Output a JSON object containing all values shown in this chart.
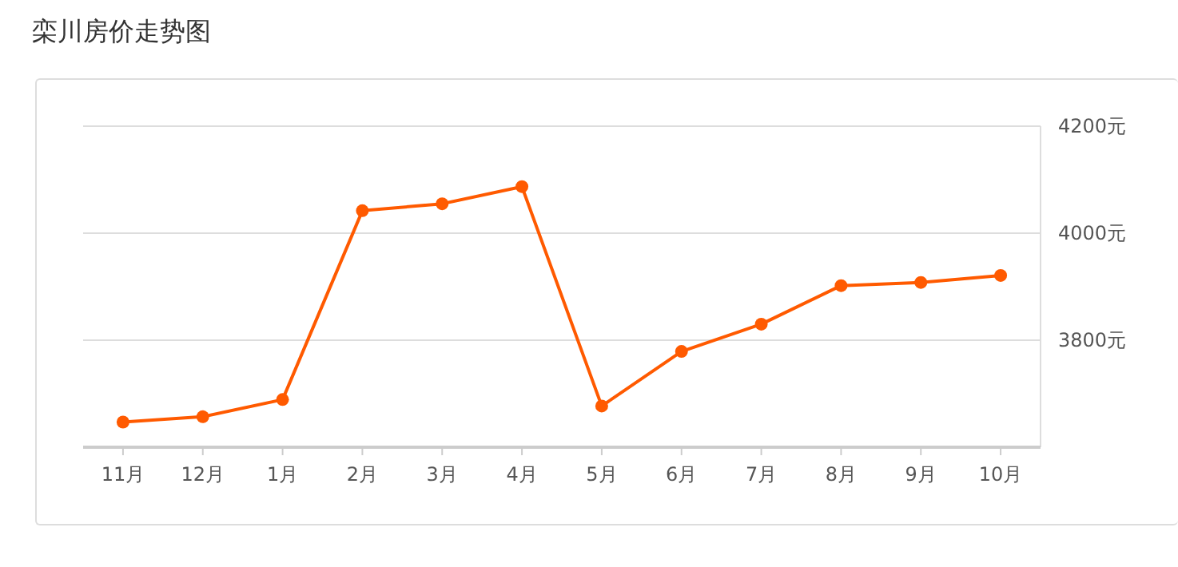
{
  "chart_data": {
    "type": "line",
    "title": "栾川房价走势图",
    "categories": [
      "11月",
      "12月",
      "1月",
      "2月",
      "3月",
      "4月",
      "5月",
      "6月",
      "7月",
      "8月",
      "9月",
      "10月"
    ],
    "series": [
      {
        "color": "#ff5a00",
        "values": [
          3647,
          3657,
          3689,
          4042,
          4055,
          4087,
          3677,
          3779,
          3830,
          3902,
          3908,
          3921
        ]
      }
    ],
    "ylim": [
      3600,
      4200
    ],
    "yticks": [
      {
        "value": 3800,
        "label": "3800元"
      },
      {
        "value": 4000,
        "label": "4000元"
      },
      {
        "value": 4200,
        "label": "4200元"
      }
    ],
    "grid": "y",
    "marker": "circle",
    "line_style": "solid"
  }
}
